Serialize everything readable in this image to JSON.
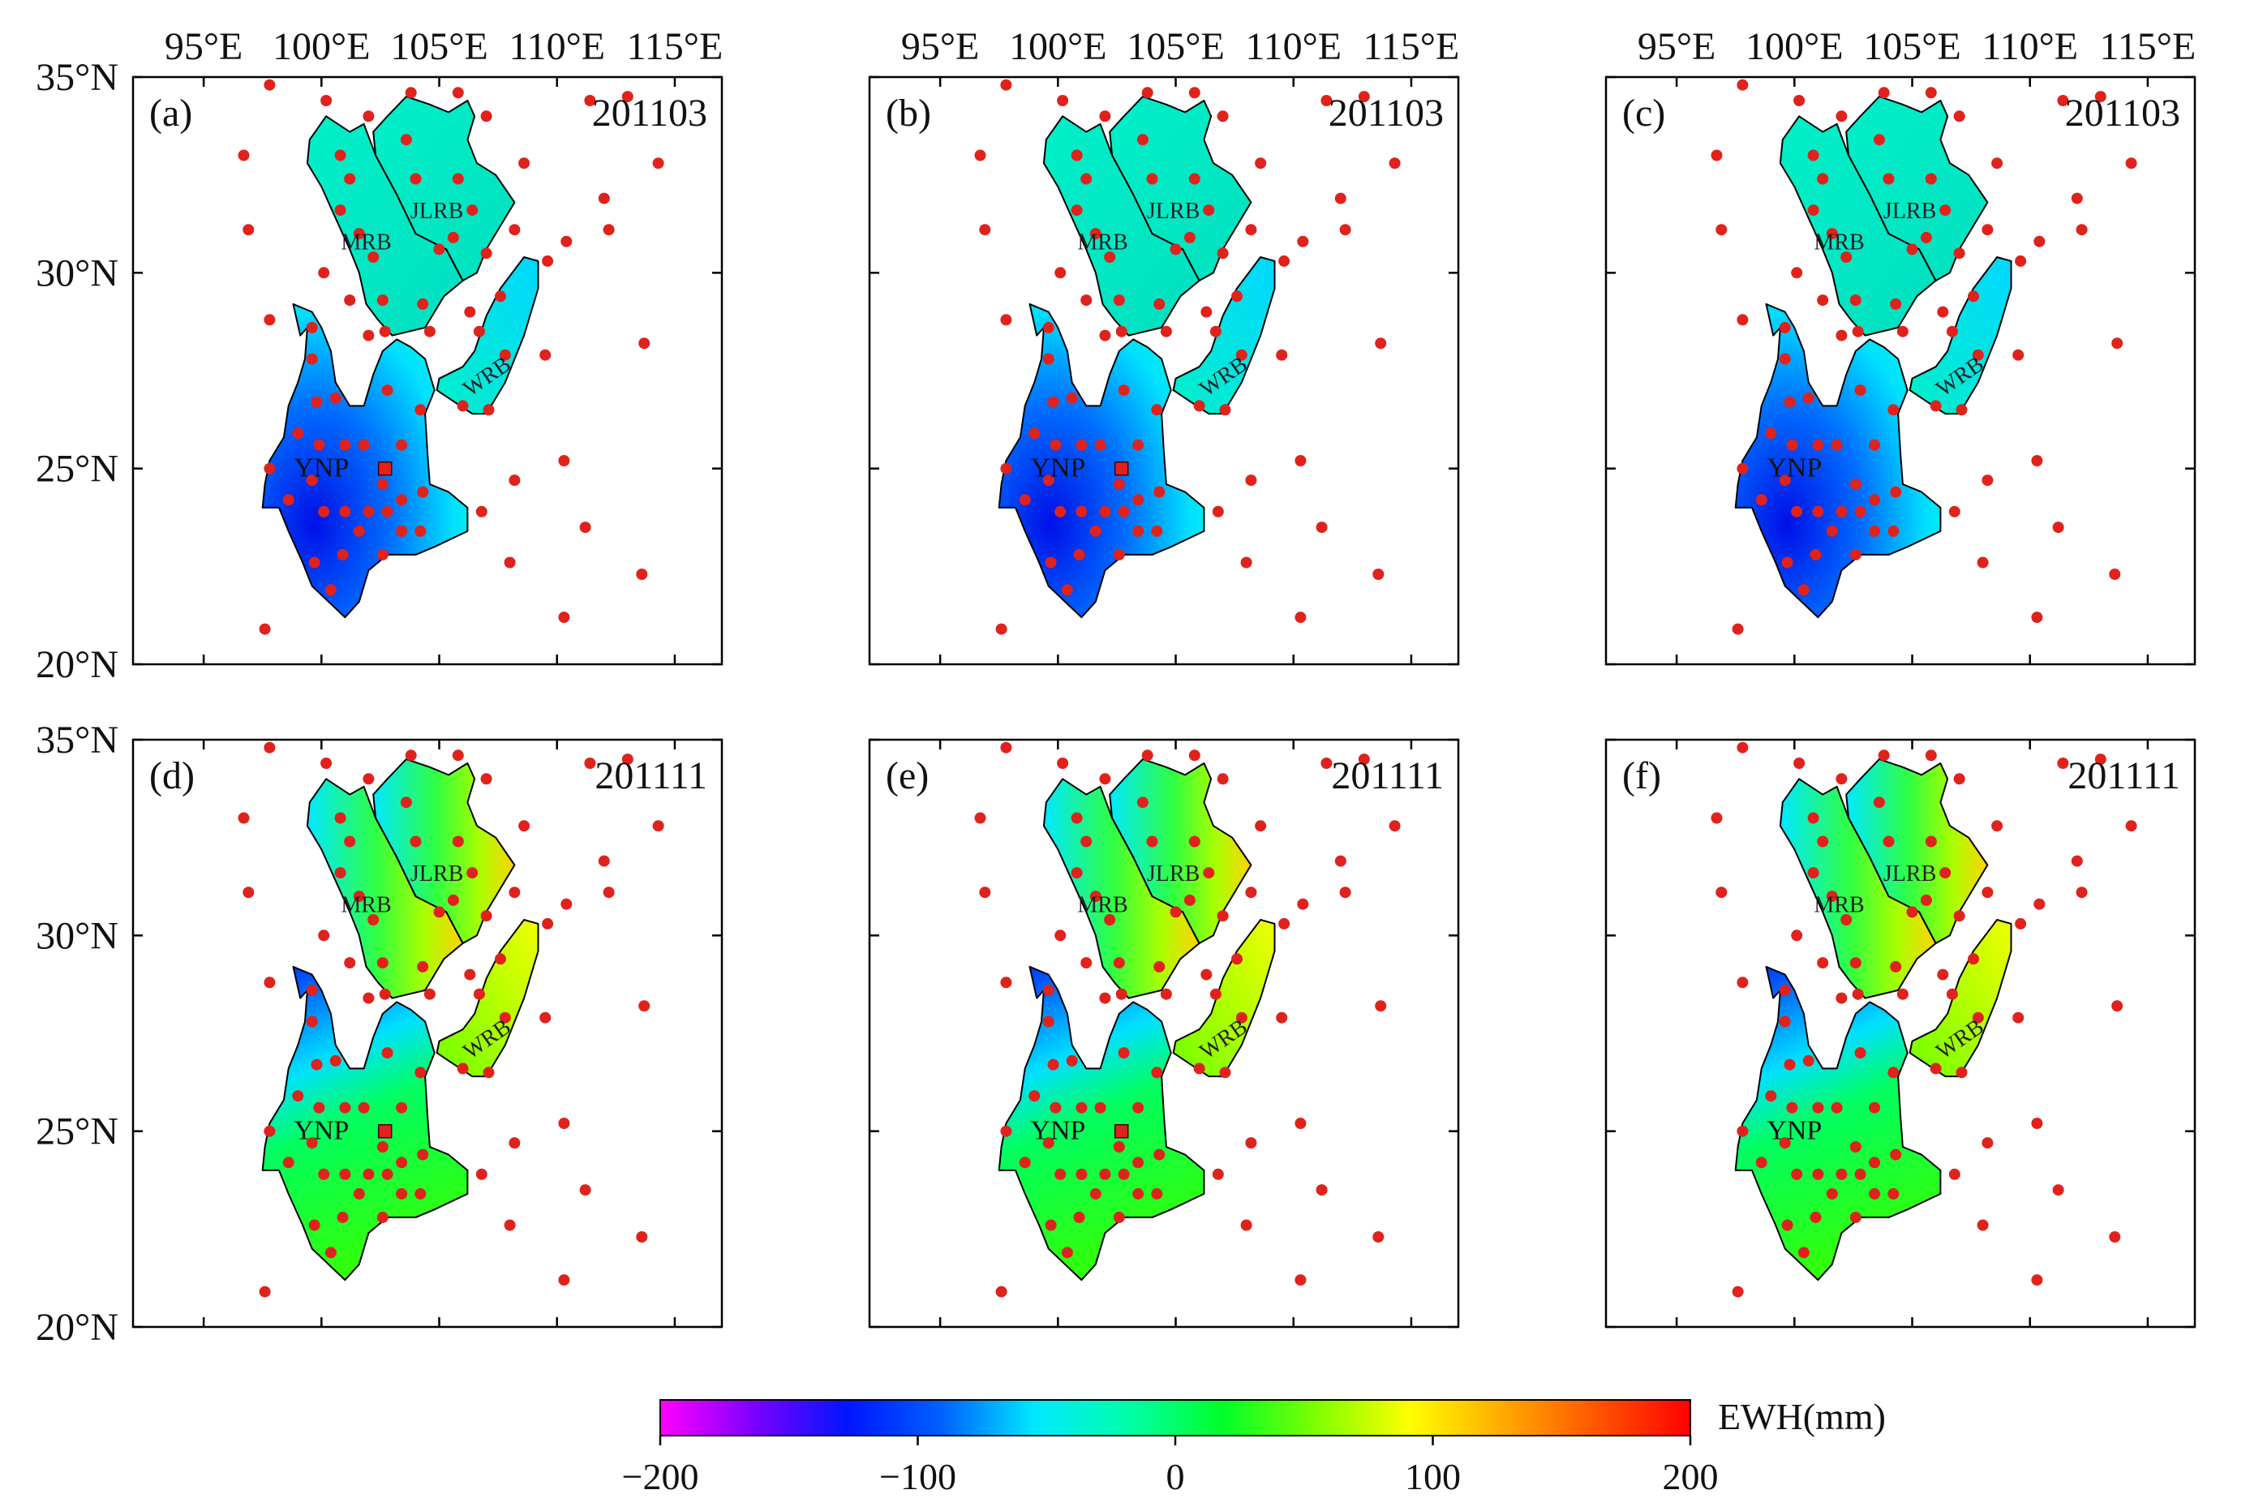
{
  "figure": {
    "x_axis_ticks": [
      "95°E",
      "100°E",
      "105°E",
      "110°E",
      "115°E"
    ],
    "y_axis_ticks": [
      "35°N",
      "30°N",
      "25°N",
      "20°N"
    ],
    "lon_range": [
      92,
      117
    ],
    "lat_range": [
      20,
      35
    ]
  },
  "panels": [
    {
      "letter": "(a)",
      "date": "201103",
      "row": 0,
      "col": 0,
      "station_marker": true,
      "field": "drought"
    },
    {
      "letter": "(b)",
      "date": "201103",
      "row": 0,
      "col": 1,
      "station_marker": true,
      "field": "drought"
    },
    {
      "letter": "(c)",
      "date": "201103",
      "row": 0,
      "col": 2,
      "station_marker": false,
      "field": "drought"
    },
    {
      "letter": "(d)",
      "date": "201111",
      "row": 1,
      "col": 0,
      "station_marker": true,
      "field": "wet"
    },
    {
      "letter": "(e)",
      "date": "201111",
      "row": 1,
      "col": 1,
      "station_marker": true,
      "field": "wet"
    },
    {
      "letter": "(f)",
      "date": "201111",
      "row": 1,
      "col": 2,
      "station_marker": false,
      "field": "wet"
    }
  ],
  "basins": {
    "mrb": "MRB",
    "jlrb": "JLRB",
    "wrb": "WRB",
    "ynp": "YNP"
  },
  "ewh_stations": [
    [
      97.8,
      34.8
    ],
    [
      100.2,
      34.4
    ],
    [
      102.0,
      34.0
    ],
    [
      103.8,
      34.6
    ],
    [
      105.8,
      34.6
    ],
    [
      107.0,
      34.0
    ],
    [
      96.7,
      33.0
    ],
    [
      100.8,
      33.0
    ],
    [
      103.6,
      33.4
    ],
    [
      108.6,
      32.8
    ],
    [
      111.4,
      34.4
    ],
    [
      113.0,
      34.5
    ],
    [
      101.2,
      32.4
    ],
    [
      104.0,
      32.4
    ],
    [
      105.8,
      32.4
    ],
    [
      106.4,
      31.6
    ],
    [
      112.0,
      31.9
    ],
    [
      114.3,
      32.8
    ],
    [
      96.9,
      31.1
    ],
    [
      100.8,
      31.6
    ],
    [
      101.6,
      31.0
    ],
    [
      102.2,
      30.4
    ],
    [
      105.0,
      30.6
    ],
    [
      105.6,
      30.9
    ],
    [
      107.0,
      30.5
    ],
    [
      108.2,
      31.1
    ],
    [
      110.4,
      30.8
    ],
    [
      112.2,
      31.1
    ],
    [
      109.6,
      30.3
    ],
    [
      100.1,
      30.0
    ],
    [
      101.2,
      29.3
    ],
    [
      102.6,
      29.3
    ],
    [
      104.3,
      29.2
    ],
    [
      106.3,
      29.0
    ],
    [
      107.6,
      29.4
    ],
    [
      97.8,
      28.8
    ],
    [
      99.6,
      28.6
    ],
    [
      102.0,
      28.4
    ],
    [
      102.7,
      28.5
    ],
    [
      104.6,
      28.5
    ],
    [
      106.7,
      28.5
    ],
    [
      109.5,
      27.9
    ],
    [
      113.7,
      28.2
    ],
    [
      99.6,
      27.8
    ],
    [
      102.8,
      27.0
    ],
    [
      99.8,
      26.7
    ],
    [
      100.6,
      26.8
    ],
    [
      104.2,
      26.5
    ],
    [
      106.0,
      26.6
    ],
    [
      107.8,
      27.9
    ],
    [
      107.1,
      26.5
    ],
    [
      99.0,
      25.9
    ],
    [
      99.9,
      25.6
    ],
    [
      101.0,
      25.6
    ],
    [
      101.8,
      25.6
    ],
    [
      103.4,
      25.6
    ],
    [
      110.3,
      25.2
    ],
    [
      97.8,
      25.0
    ],
    [
      99.6,
      24.7
    ],
    [
      102.6,
      24.6
    ],
    [
      103.4,
      24.2
    ],
    [
      104.3,
      24.4
    ],
    [
      108.2,
      24.7
    ],
    [
      98.6,
      24.2
    ],
    [
      100.1,
      23.9
    ],
    [
      101.0,
      23.9
    ],
    [
      102.0,
      23.9
    ],
    [
      102.8,
      23.9
    ],
    [
      106.8,
      23.9
    ],
    [
      101.6,
      23.4
    ],
    [
      103.4,
      23.4
    ],
    [
      104.2,
      23.4
    ],
    [
      111.2,
      23.5
    ],
    [
      99.7,
      22.6
    ],
    [
      100.9,
      22.8
    ],
    [
      102.6,
      22.8
    ],
    [
      108.0,
      22.6
    ],
    [
      113.6,
      22.3
    ],
    [
      100.4,
      21.9
    ],
    [
      97.6,
      20.9
    ],
    [
      110.3,
      21.2
    ]
  ],
  "colorbar": {
    "label": "EWH(mm)",
    "ticks": [
      "−200",
      "−100",
      "0",
      "100",
      "200"
    ],
    "min": -200,
    "max": 200,
    "colors": [
      "#ff00ff",
      "#7b00ff",
      "#0015ff",
      "#0060ff",
      "#00e8ff",
      "#00ffa8",
      "#00ff2a",
      "#7cff00",
      "#ffff00",
      "#ffaa00",
      "#ff5500",
      "#ff0000"
    ]
  }
}
